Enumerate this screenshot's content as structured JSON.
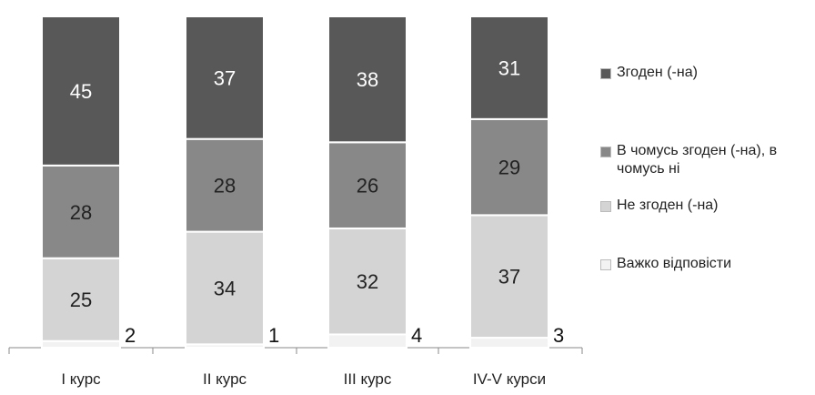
{
  "chart_data": {
    "type": "bar",
    "stacked": true,
    "categories": [
      "I курс",
      "II курс",
      "III курс",
      "IV-V курси"
    ],
    "series": [
      {
        "name": "Важко відповісти",
        "values": [
          2,
          1,
          4,
          3
        ],
        "color": "#f2f2f2"
      },
      {
        "name": "Не згоден (-на)",
        "values": [
          25,
          34,
          32,
          37
        ],
        "color": "#d4d4d4"
      },
      {
        "name": "В чомусь згоден (-на), в чомусь ні",
        "values": [
          28,
          28,
          26,
          29
        ],
        "color": "#888888"
      },
      {
        "name": "Згоден (-на)",
        "values": [
          45,
          37,
          38,
          31
        ],
        "color": "#585858"
      }
    ],
    "ylim": [
      0,
      100
    ],
    "grid": false,
    "legend_position": "right"
  }
}
